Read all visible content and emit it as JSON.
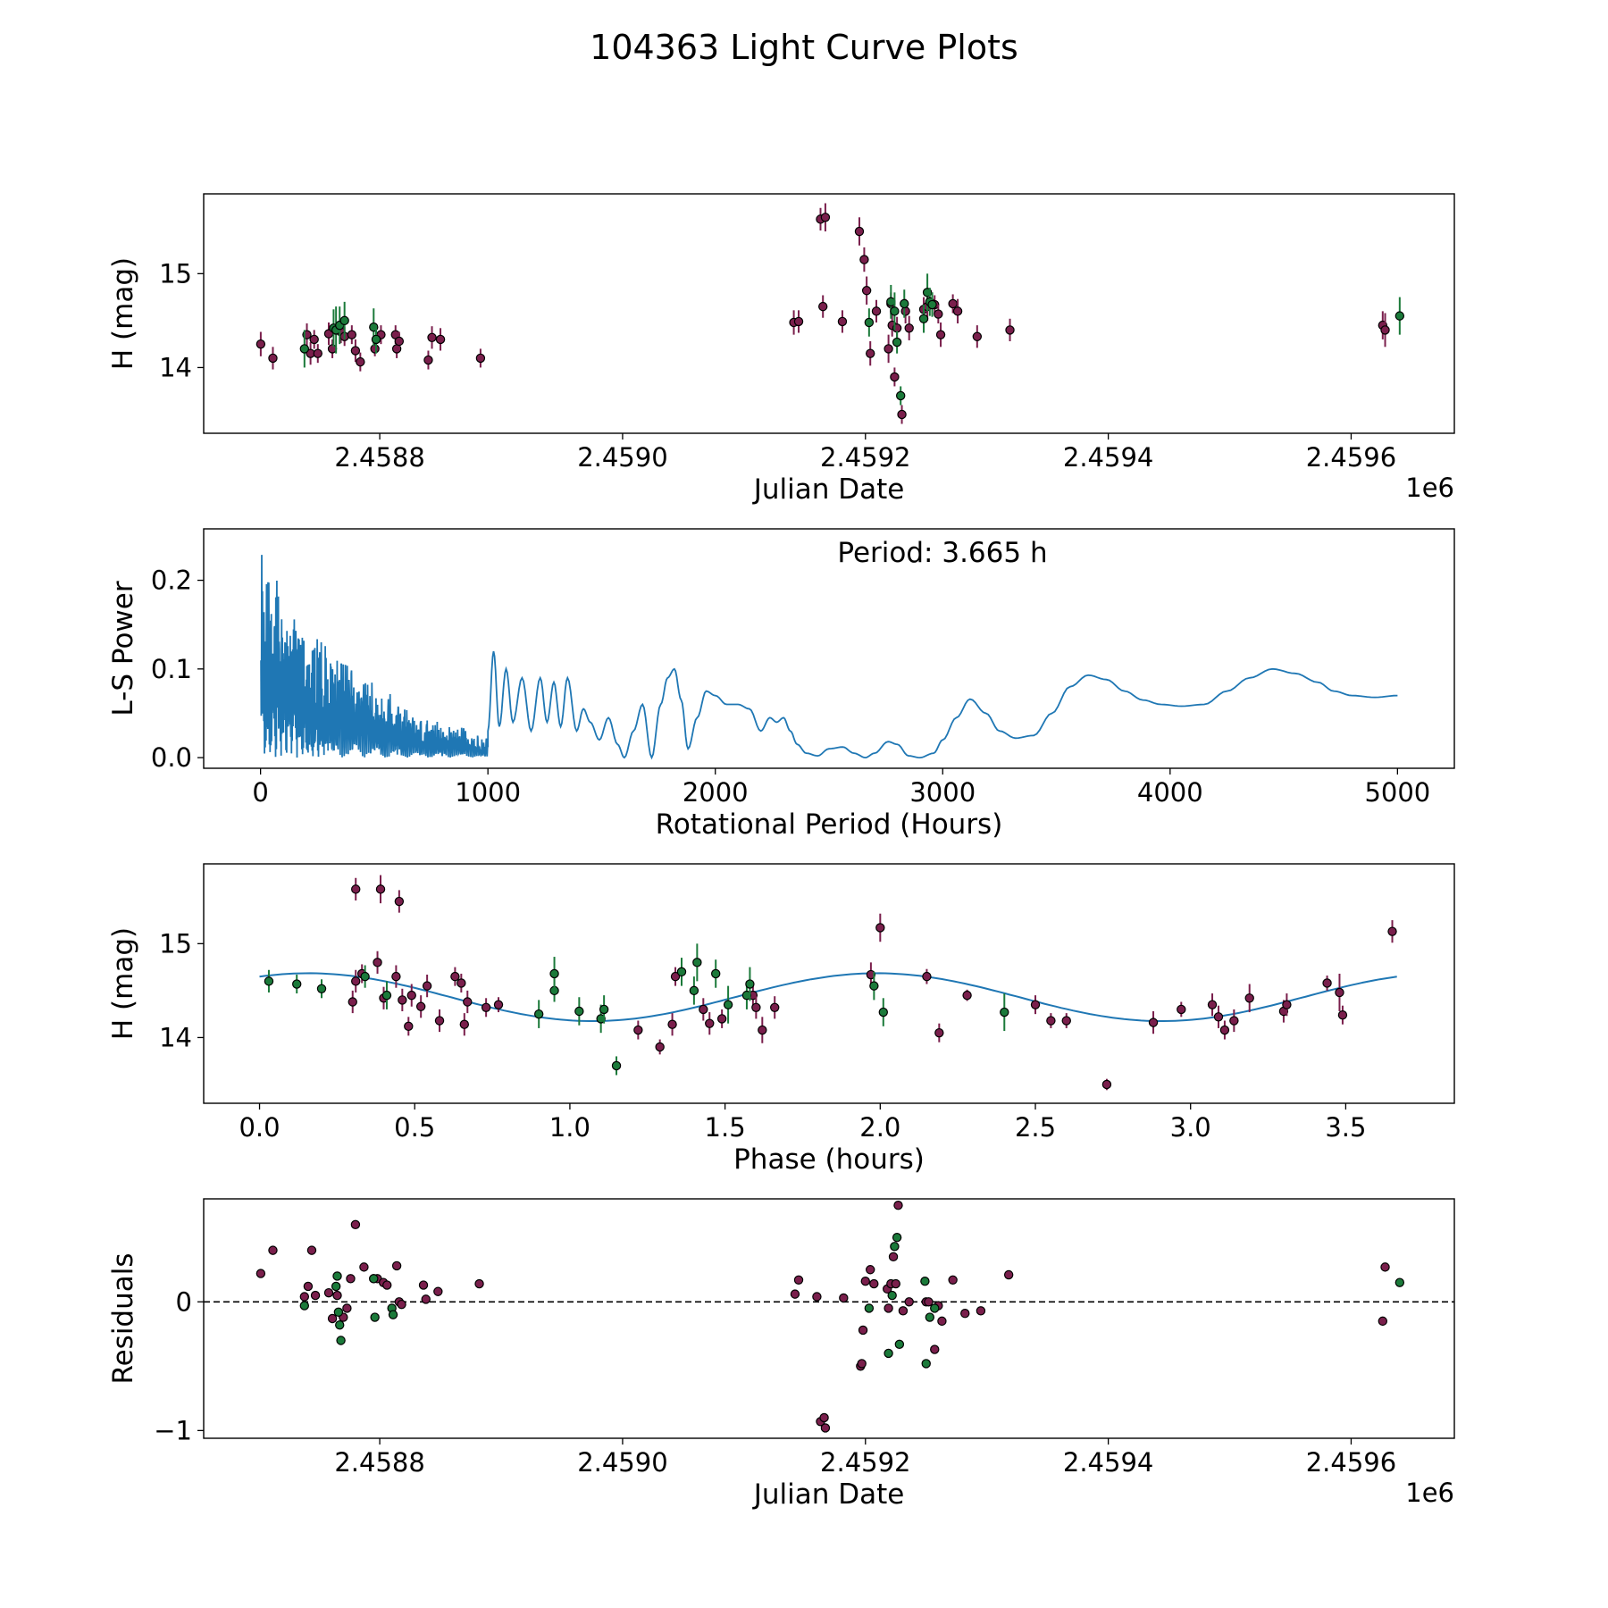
{
  "figure": {
    "title": "104363 Light Curve Plots"
  },
  "colors": {
    "purple": "#7a1f4c",
    "green": "#1b7a3a",
    "line": "#1f77b4",
    "edge": "#000000"
  },
  "chart_data": [
    {
      "id": "lightcurve",
      "type": "scatter",
      "title": "",
      "xlabel": "Julian Date",
      "ylabel": "H (mag)",
      "offset_label": "1e6",
      "xlim": [
        2458655,
        2459685
      ],
      "ylim": [
        13.3,
        15.85
      ],
      "xticks": [
        2458800,
        2459000,
        2459200,
        2459400,
        2459600
      ],
      "xtick_labels": [
        "2.4588",
        "2.4590",
        "2.4592",
        "2.4594",
        "2.4596"
      ],
      "yticks": [
        14,
        15
      ],
      "ytick_labels": [
        "14",
        "15"
      ],
      "series": [
        {
          "name": "band-purple",
          "color": "purple",
          "x": [
            2458702,
            2458712,
            2458740,
            2458743,
            2458746,
            2458749,
            2458758,
            2458761,
            2458768,
            2458771,
            2458777,
            2458780,
            2458784,
            2458796,
            2458801,
            2458813,
            2458814,
            2458816,
            2458840,
            2458843,
            2458850,
            2458883,
            2459141,
            2459145,
            2459163,
            2459165,
            2459167,
            2459181,
            2459195,
            2459199,
            2459201,
            2459204,
            2459209,
            2459219,
            2459221,
            2459222,
            2459224,
            2459226,
            2459230,
            2459233,
            2459236,
            2459248,
            2459251,
            2459255,
            2459257,
            2459260,
            2459262,
            2459272,
            2459276,
            2459292,
            2459319,
            2459626,
            2459628
          ],
          "y": [
            14.25,
            14.1,
            14.35,
            14.15,
            14.3,
            14.15,
            14.36,
            14.2,
            14.38,
            14.33,
            14.35,
            14.18,
            14.06,
            14.2,
            14.35,
            14.35,
            14.2,
            14.28,
            14.08,
            14.32,
            14.3,
            14.1,
            14.48,
            14.49,
            15.58,
            14.65,
            15.6,
            14.49,
            15.45,
            15.15,
            14.82,
            14.15,
            14.6,
            14.2,
            14.68,
            14.45,
            13.9,
            14.42,
            13.5,
            14.6,
            14.42,
            14.62,
            14.65,
            14.68,
            14.67,
            14.57,
            14.35,
            14.68,
            14.6,
            14.33,
            14.4,
            14.45,
            14.4
          ],
          "err": [
            0.13,
            0.12,
            0.12,
            0.12,
            0.1,
            0.1,
            0.12,
            0.1,
            0.12,
            0.1,
            0.1,
            0.12,
            0.1,
            0.08,
            0.1,
            0.1,
            0.1,
            0.1,
            0.1,
            0.12,
            0.12,
            0.1,
            0.13,
            0.12,
            0.12,
            0.12,
            0.15,
            0.12,
            0.15,
            0.13,
            0.15,
            0.13,
            0.12,
            0.15,
            0.12,
            0.12,
            0.1,
            0.12,
            0.1,
            0.13,
            0.13,
            0.13,
            0.15,
            0.12,
            0.1,
            0.1,
            0.13,
            0.1,
            0.13,
            0.12,
            0.12,
            0.15,
            0.18
          ]
        },
        {
          "name": "band-green",
          "color": "green",
          "x": [
            2458738,
            2458762,
            2458764,
            2458767,
            2458771,
            2458795,
            2458797,
            2459203,
            2459221,
            2459224,
            2459226,
            2459229,
            2459232,
            2459248,
            2459251,
            2459253,
            2459255,
            2459640
          ],
          "y": [
            14.2,
            14.42,
            14.4,
            14.45,
            14.5,
            14.43,
            14.3,
            14.48,
            14.7,
            14.6,
            14.27,
            13.7,
            14.68,
            14.52,
            14.8,
            14.7,
            14.67,
            14.55
          ],
          "err": [
            0.2,
            0.2,
            0.25,
            0.2,
            0.2,
            0.2,
            0.15,
            0.15,
            0.18,
            0.2,
            0.12,
            0.1,
            0.15,
            0.15,
            0.2,
            0.15,
            0.13,
            0.2
          ]
        }
      ]
    },
    {
      "id": "periodogram",
      "type": "line",
      "title": "",
      "xlabel": "Rotational Period (Hours)",
      "ylabel": "L-S Power",
      "annotation": "Period: 3.665 h",
      "xlim": [
        -250,
        5250
      ],
      "ylim": [
        -0.012,
        0.258
      ],
      "xticks": [
        0,
        1000,
        2000,
        3000,
        4000,
        5000
      ],
      "xtick_labels": [
        "0",
        "1000",
        "2000",
        "3000",
        "4000",
        "5000"
      ],
      "yticks": [
        0.0,
        0.1,
        0.2
      ],
      "ytick_labels": [
        "0.0",
        "0.1",
        "0.2"
      ],
      "power_anchors": {
        "period": [
          1000,
          1025,
          1050,
          1080,
          1110,
          1150,
          1190,
          1230,
          1260,
          1290,
          1320,
          1350,
          1390,
          1420,
          1450,
          1490,
          1530,
          1570,
          1600,
          1640,
          1680,
          1720,
          1760,
          1790,
          1820,
          1850,
          1880,
          1920,
          1960,
          2000,
          2050,
          2100,
          2150,
          2200,
          2240,
          2270,
          2300,
          2330,
          2360,
          2400,
          2450,
          2500,
          2560,
          2610,
          2660,
          2700,
          2760,
          2800,
          2850,
          2900,
          2960,
          3000,
          3060,
          3120,
          3190,
          3250,
          3320,
          3400,
          3480,
          3560,
          3640,
          3720,
          3800,
          3880,
          3960,
          4050,
          4150,
          4250,
          4350,
          4450,
          4550,
          4650,
          4720,
          4800,
          4900,
          5000
        ],
        "power": [
          0.03,
          0.12,
          0.035,
          0.1,
          0.04,
          0.09,
          0.03,
          0.09,
          0.04,
          0.085,
          0.035,
          0.09,
          0.03,
          0.055,
          0.04,
          0.02,
          0.045,
          0.015,
          0.0,
          0.03,
          0.06,
          0.0,
          0.06,
          0.09,
          0.1,
          0.065,
          0.01,
          0.045,
          0.075,
          0.07,
          0.06,
          0.06,
          0.055,
          0.03,
          0.045,
          0.04,
          0.045,
          0.03,
          0.015,
          0.005,
          0.002,
          0.01,
          0.012,
          0.005,
          0.0,
          0.005,
          0.018,
          0.015,
          0.002,
          0.0,
          0.005,
          0.02,
          0.045,
          0.066,
          0.05,
          0.03,
          0.022,
          0.025,
          0.05,
          0.08,
          0.093,
          0.088,
          0.075,
          0.065,
          0.06,
          0.058,
          0.06,
          0.075,
          0.09,
          0.1,
          0.095,
          0.085,
          0.075,
          0.07,
          0.068,
          0.07
        ]
      }
    },
    {
      "id": "phased",
      "type": "scatter",
      "title": "",
      "xlabel": "Phase (hours)",
      "ylabel": "H (mag)",
      "xlim": [
        -0.18,
        3.85
      ],
      "ylim": [
        13.3,
        15.85
      ],
      "xticks": [
        0.0,
        0.5,
        1.0,
        1.5,
        2.0,
        2.5,
        3.0,
        3.5
      ],
      "xtick_labels": [
        "0.0",
        "0.5",
        "1.0",
        "1.5",
        "2.0",
        "2.5",
        "3.0",
        "3.5"
      ],
      "yticks": [
        14,
        15
      ],
      "ytick_labels": [
        "14",
        "15"
      ],
      "model": {
        "mean": 14.43,
        "amplitude": 0.255,
        "peak_phase": 1.99,
        "period": 3.665,
        "range": [
          0.0,
          3.665
        ]
      },
      "series": [
        {
          "name": "band-purple",
          "color": "purple",
          "x": [
            0.3,
            0.31,
            0.31,
            0.33,
            0.38,
            0.39,
            0.4,
            0.44,
            0.45,
            0.46,
            0.48,
            0.49,
            0.52,
            0.54,
            0.58,
            0.63,
            0.65,
            0.66,
            0.67,
            0.73,
            0.77,
            1.22,
            1.29,
            1.33,
            1.34,
            1.43,
            1.45,
            1.49,
            1.59,
            1.6,
            1.62,
            1.66,
            1.97,
            2.0,
            2.15,
            2.19,
            2.28,
            2.5,
            2.55,
            2.6,
            2.73,
            2.88,
            2.97,
            3.07,
            3.09,
            3.11,
            3.14,
            3.19,
            3.3,
            3.31,
            3.44,
            3.48,
            3.49,
            3.65
          ],
          "y": [
            14.38,
            15.58,
            14.6,
            14.68,
            14.8,
            15.58,
            14.42,
            14.65,
            15.45,
            14.4,
            14.12,
            14.45,
            14.33,
            14.55,
            14.18,
            14.65,
            14.58,
            14.14,
            14.38,
            14.32,
            14.35,
            14.08,
            13.9,
            14.14,
            14.65,
            14.3,
            14.15,
            14.2,
            14.45,
            14.32,
            14.08,
            14.32,
            14.67,
            15.17,
            14.65,
            14.05,
            14.45,
            14.35,
            14.18,
            14.18,
            13.5,
            14.16,
            14.3,
            14.35,
            14.22,
            14.08,
            14.18,
            14.42,
            14.28,
            14.35,
            14.58,
            14.48,
            14.24,
            15.13
          ],
          "err": [
            0.12,
            0.12,
            0.12,
            0.1,
            0.12,
            0.15,
            0.12,
            0.12,
            0.12,
            0.12,
            0.1,
            0.12,
            0.12,
            0.12,
            0.12,
            0.1,
            0.1,
            0.12,
            0.12,
            0.1,
            0.08,
            0.1,
            0.08,
            0.12,
            0.1,
            0.12,
            0.12,
            0.1,
            0.12,
            0.12,
            0.14,
            0.12,
            0.13,
            0.15,
            0.08,
            0.1,
            0.06,
            0.1,
            0.08,
            0.08,
            0.06,
            0.12,
            0.08,
            0.12,
            0.12,
            0.1,
            0.12,
            0.15,
            0.12,
            0.12,
            0.08,
            0.2,
            0.1,
            0.12
          ]
        },
        {
          "name": "band-green",
          "color": "green",
          "x": [
            0.03,
            0.12,
            0.2,
            0.34,
            0.41,
            0.9,
            0.95,
            0.95,
            1.03,
            1.1,
            1.11,
            1.15,
            1.36,
            1.4,
            1.41,
            1.47,
            1.51,
            1.57,
            1.58,
            1.98,
            2.01,
            2.4
          ],
          "y": [
            14.6,
            14.57,
            14.52,
            14.65,
            14.45,
            14.25,
            14.5,
            14.68,
            14.28,
            14.2,
            14.3,
            13.7,
            14.7,
            14.5,
            14.8,
            14.68,
            14.35,
            14.45,
            14.57,
            14.55,
            14.27,
            14.27
          ],
          "err": [
            0.12,
            0.1,
            0.1,
            0.12,
            0.15,
            0.15,
            0.12,
            0.18,
            0.15,
            0.15,
            0.15,
            0.1,
            0.15,
            0.15,
            0.2,
            0.15,
            0.2,
            0.15,
            0.18,
            0.15,
            0.15,
            0.2
          ]
        }
      ]
    },
    {
      "id": "residuals",
      "type": "scatter",
      "title": "",
      "xlabel": "Julian Date",
      "ylabel": "Residuals",
      "offset_label": "1e6",
      "xlim": [
        2458655,
        2459685
      ],
      "ylim": [
        -1.06,
        0.8
      ],
      "xticks": [
        2458800,
        2459000,
        2459200,
        2459400,
        2459600
      ],
      "xtick_labels": [
        "2.4588",
        "2.4590",
        "2.4592",
        "2.4594",
        "2.4596"
      ],
      "yticks": [
        -1,
        0
      ],
      "ytick_labels": [
        "−1",
        "0"
      ],
      "reference_line": 0,
      "series": [
        {
          "name": "band-purple",
          "color": "purple",
          "x": [
            2458702,
            2458712,
            2458738,
            2458741,
            2458744,
            2458747,
            2458758,
            2458761,
            2458765,
            2458770,
            2458773,
            2458776,
            2458780,
            2458787,
            2458795,
            2458798,
            2458803,
            2458806,
            2458814,
            2458816,
            2458818,
            2458836,
            2458838,
            2458848,
            2458882,
            2459142,
            2459145,
            2459160,
            2459163,
            2459166,
            2459167,
            2459182,
            2459196,
            2459197,
            2459198,
            2459200,
            2459204,
            2459207,
            2459218,
            2459219,
            2459221,
            2459223,
            2459225,
            2459227,
            2459231,
            2459236,
            2459250,
            2459252,
            2459257,
            2459260,
            2459263,
            2459272,
            2459282,
            2459295,
            2459318,
            2459626,
            2459628
          ],
          "y": [
            0.22,
            0.4,
            0.04,
            0.12,
            0.4,
            0.05,
            0.07,
            -0.13,
            0.05,
            -0.12,
            -0.05,
            0.18,
            0.6,
            0.27,
            0.18,
            0.18,
            0.15,
            0.13,
            0.28,
            0.0,
            -0.02,
            0.13,
            0.02,
            0.08,
            0.14,
            0.06,
            0.17,
            0.04,
            -0.93,
            -0.9,
            -0.98,
            0.03,
            -0.5,
            -0.48,
            -0.22,
            0.16,
            0.25,
            0.14,
            0.1,
            -0.05,
            0.14,
            0.35,
            0.14,
            0.75,
            -0.07,
            0.0,
            0.0,
            0.0,
            -0.37,
            -0.03,
            -0.15,
            0.17,
            -0.09,
            -0.07,
            0.21,
            -0.15,
            0.27
          ]
        },
        {
          "name": "band-green",
          "color": "green",
          "x": [
            2458738,
            2458764,
            2458765,
            2458766,
            2458767,
            2458768,
            2458795,
            2458796,
            2458810,
            2458811,
            2459203,
            2459219,
            2459222,
            2459224,
            2459226,
            2459228,
            2459249,
            2459250,
            2459253,
            2459257,
            2459640
          ],
          "y": [
            -0.03,
            0.12,
            0.2,
            -0.08,
            -0.18,
            -0.3,
            0.18,
            -0.12,
            -0.05,
            -0.1,
            -0.05,
            -0.4,
            0.05,
            0.43,
            0.5,
            -0.33,
            0.16,
            -0.48,
            -0.12,
            -0.05,
            0.15
          ]
        }
      ]
    }
  ]
}
